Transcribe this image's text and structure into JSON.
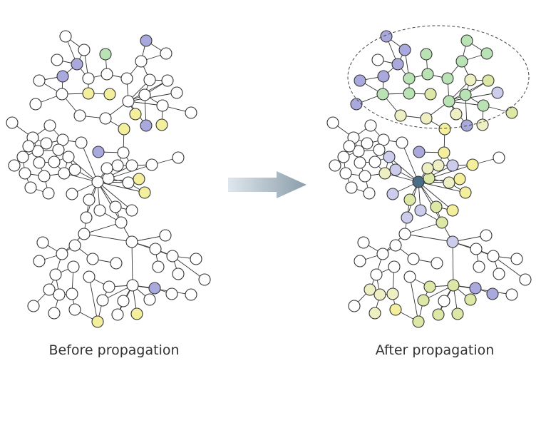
{
  "panels": [
    {
      "id": "before",
      "caption": "Before propagation"
    },
    {
      "id": "after",
      "caption": "After propagation"
    }
  ],
  "colors": {
    "node_white": "#ffffff",
    "node_yellow": "#f3ef9c",
    "node_lightyellow": "#eef0c3",
    "node_lightgreen": "#dde8a6",
    "node_green": "#b9e3b4",
    "node_blue": "#a9a9dd",
    "node_lavender": "#cccced",
    "node_dark": "#4a6e86",
    "edge": "#333333",
    "arrow_start": "#dfe7ec",
    "arrow_end": "#8a9daa"
  },
  "icons": {
    "arrow": "propagation-arrow-icon"
  }
}
